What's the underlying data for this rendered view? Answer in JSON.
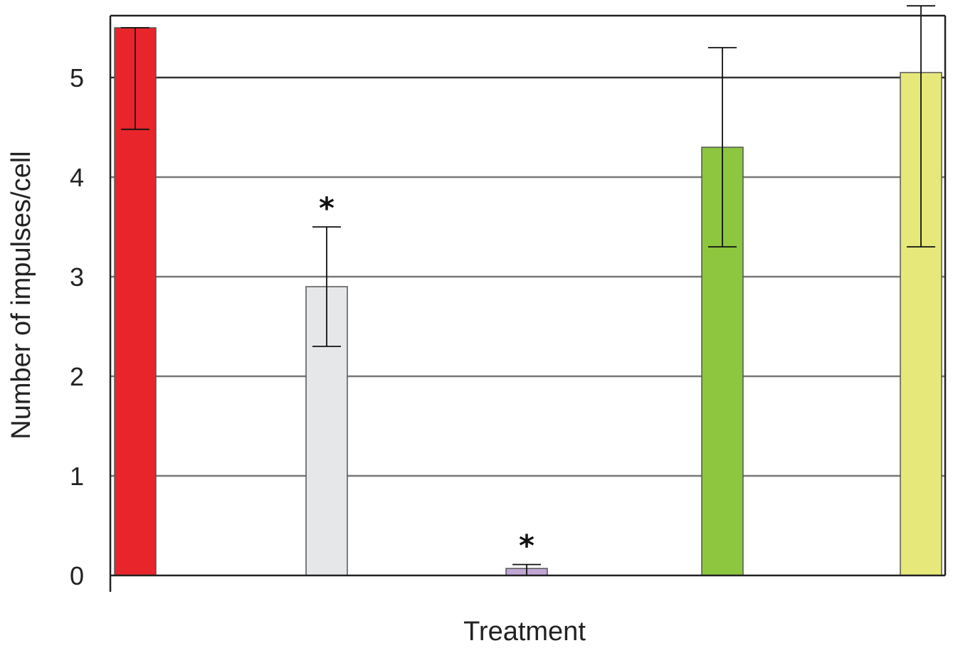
{
  "chart_data": {
    "type": "bar",
    "title": "",
    "xlabel": "Treatment",
    "ylabel": "Number of impulses/cell",
    "ylim": [
      0,
      5.6
    ],
    "yticks": [
      "0",
      "1",
      "2",
      "3",
      "4",
      "5"
    ],
    "grid": true,
    "legend": "none",
    "categories": [
      "",
      "",
      "",
      "",
      ""
    ],
    "values": [
      5.5,
      2.9,
      0.07,
      4.3,
      5.05
    ],
    "error_low": [
      4.48,
      2.3,
      0.0,
      3.3,
      3.3
    ],
    "error_high": [
      5.5,
      3.5,
      0.11,
      5.3,
      5.72
    ],
    "significance": [
      "",
      "*",
      "*",
      "",
      ""
    ],
    "colors": [
      "#e8252b",
      "#e6e7e8",
      "#c1a6d6",
      "#8dc63f",
      "#e6e97a"
    ]
  }
}
